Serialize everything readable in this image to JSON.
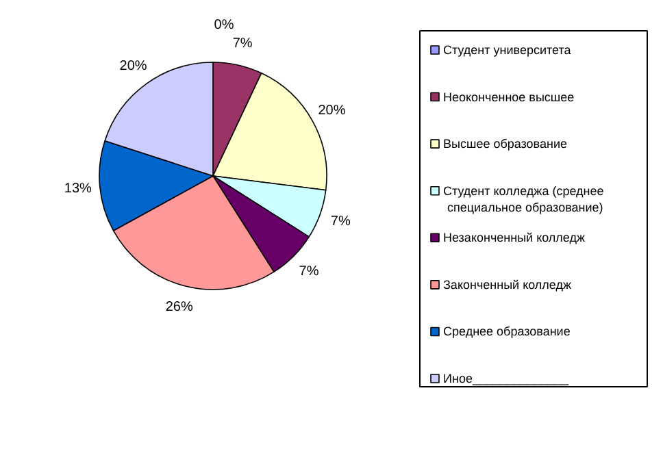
{
  "chart_data": {
    "type": "pie",
    "categories": [
      "Студент университета",
      "Неоконченное высшее",
      "Высшее образование",
      "Студент колледжа (среднее специальное образование)",
      "Незаконченный колледж",
      "Законченный колледж",
      "Среднее образование",
      "Иное______________"
    ],
    "values": [
      0,
      7,
      20,
      7,
      7,
      26,
      13,
      20
    ],
    "colors": [
      "#9999ff",
      "#993366",
      "#ffffcc",
      "#ccffff",
      "#660066",
      "#ff9999",
      "#0066cc",
      "#ccccff"
    ],
    "value_labels": [
      "0%",
      "7%",
      "20%",
      "7%",
      "7%",
      "26%",
      "13%",
      "20%"
    ],
    "legend": "right"
  }
}
